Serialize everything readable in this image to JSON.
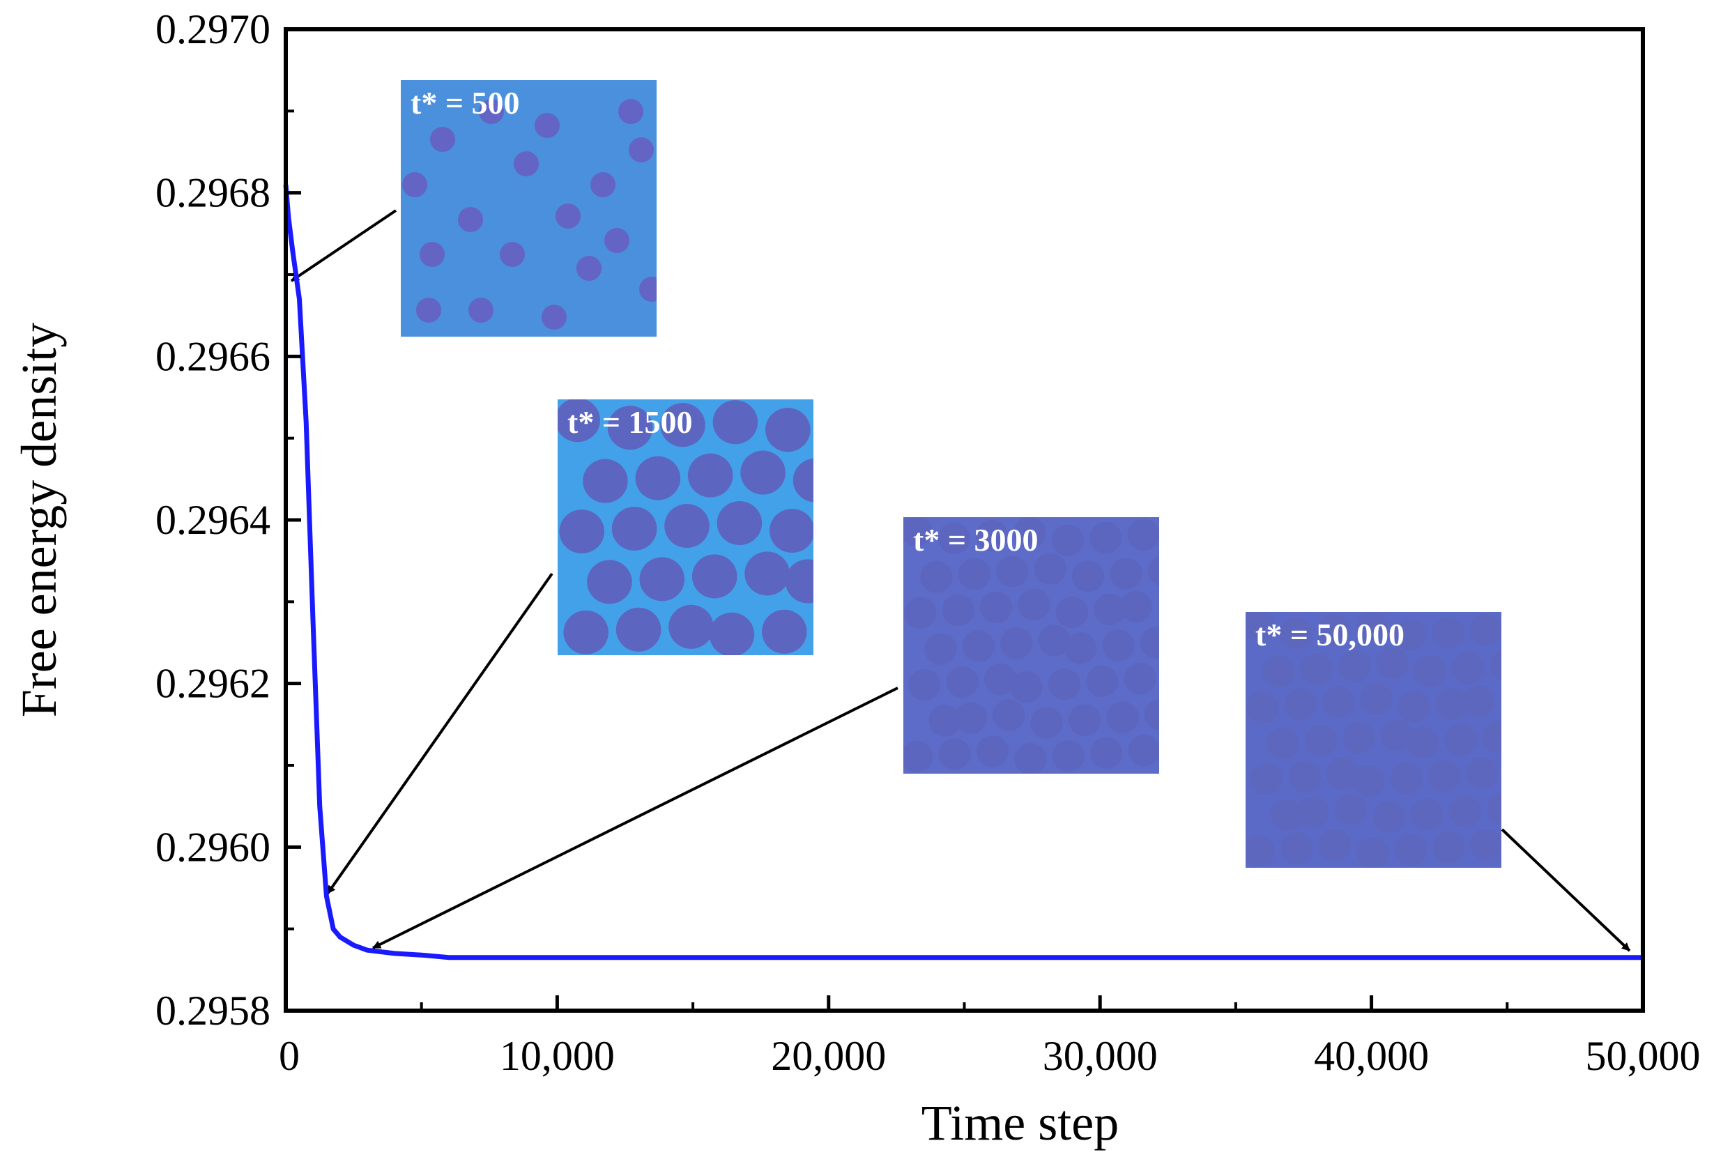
{
  "chart_data": {
    "type": "line",
    "title": "",
    "xlabel": "Time step",
    "ylabel": "Free energy density",
    "xlim": [
      0,
      50000
    ],
    "ylim": [
      0.2958,
      0.297
    ],
    "x_ticks": [
      0,
      10000,
      20000,
      30000,
      40000,
      50000
    ],
    "x_tick_labels": [
      "0",
      "10,000",
      "20,000",
      "30,000",
      "40,000",
      "50,000"
    ],
    "y_ticks": [
      0.2958,
      0.296,
      0.2962,
      0.2964,
      0.2966,
      0.2968,
      0.297
    ],
    "y_tick_labels": [
      "0.2958",
      "0.2960",
      "0.2962",
      "0.2964",
      "0.2966",
      "0.2968",
      "0.2970"
    ],
    "grid": false,
    "series": [
      {
        "name": "Free energy density",
        "color": "#1a1aff",
        "x": [
          0,
          100,
          250,
          500,
          750,
          1000,
          1250,
          1500,
          1750,
          2000,
          2500,
          3000,
          4000,
          5000,
          6000,
          10000,
          20000,
          30000,
          40000,
          50000
        ],
        "y": [
          0.29681,
          0.29677,
          0.29673,
          0.29667,
          0.29652,
          0.29628,
          0.29605,
          0.29594,
          0.2959,
          0.29589,
          0.29588,
          0.295874,
          0.29587,
          0.295868,
          0.295865,
          0.295865,
          0.295865,
          0.295865,
          0.295865,
          0.295865
        ]
      }
    ],
    "annotations": [
      {
        "label": "t* = 500",
        "x": 500,
        "y": 0.2967,
        "pattern": "dots",
        "bg": "#4a90dc",
        "blob": "#6364c4"
      },
      {
        "label": "t* = 1500",
        "x": 1500,
        "y": 0.29594,
        "pattern": "cells-large",
        "bg": "#43a1ea",
        "blob": "#5c66c0"
      },
      {
        "label": "t* = 3000",
        "x": 3000,
        "y": 0.29588,
        "pattern": "cells",
        "bg": "#5c6cc8",
        "blob": "#5c66be"
      },
      {
        "label": "t* = 50,000",
        "x": 50000,
        "y": 0.295875,
        "pattern": "cells",
        "bg": "#5a6ac6",
        "blob": "#5d67bd"
      }
    ]
  }
}
